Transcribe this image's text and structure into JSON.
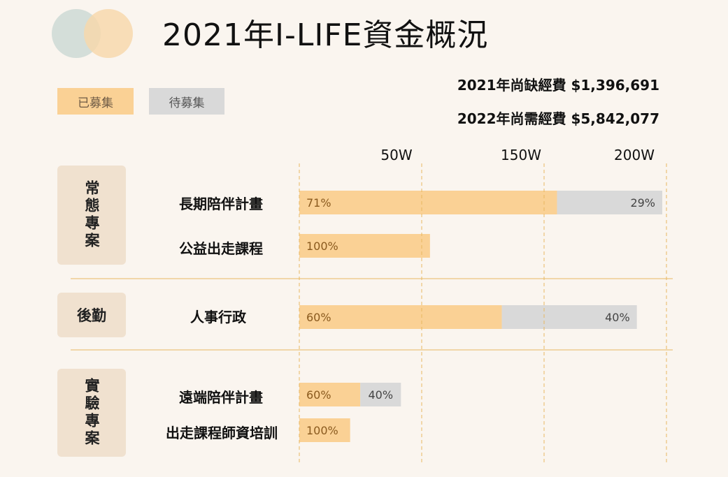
{
  "title": "2021年I-LIFE資金概況",
  "legend": {
    "raised": "已募集",
    "pending": "待募集"
  },
  "summary": {
    "line1": "2021年尚缺經費 $1,396,691",
    "line2": "2022年尚需經費 $5,842,077"
  },
  "colors": {
    "raised": "#fad195",
    "pending": "#d9d9d9",
    "grid": "#e8b860",
    "logo_left": "#cfdcd6",
    "logo_right": "#f7d7a9"
  },
  "categories": [
    {
      "label": "常態專案"
    },
    {
      "label": "後勤"
    },
    {
      "label": "實驗專案"
    }
  ],
  "chart_data": {
    "type": "bar",
    "orientation": "horizontal",
    "stacked": true,
    "x_ticks": [
      "50W",
      "150W",
      "200W"
    ],
    "rows": [
      {
        "group": "常態專案",
        "label": "長期陪伴計畫",
        "raised_pct": "71%",
        "pending_pct": "29%",
        "raised_share": 0.71,
        "total": 1.0
      },
      {
        "group": "常態專案",
        "label": "公益出走課程",
        "raised_pct": "100%",
        "pending_pct": "",
        "raised_share": 1.0,
        "total": 0.36
      },
      {
        "group": "後勤",
        "label": "人事行政",
        "raised_pct": "60%",
        "pending_pct": "40%",
        "raised_share": 0.6,
        "total": 0.93
      },
      {
        "group": "實驗專案",
        "label": "遠端陪伴計畫",
        "raised_pct": "60%",
        "pending_pct": "40%",
        "raised_share": 0.6,
        "total": 0.28
      },
      {
        "group": "實驗專案",
        "label": "出走課程師資培訓",
        "raised_pct": "100%",
        "pending_pct": "",
        "raised_share": 1.0,
        "total": 0.14
      }
    ]
  }
}
